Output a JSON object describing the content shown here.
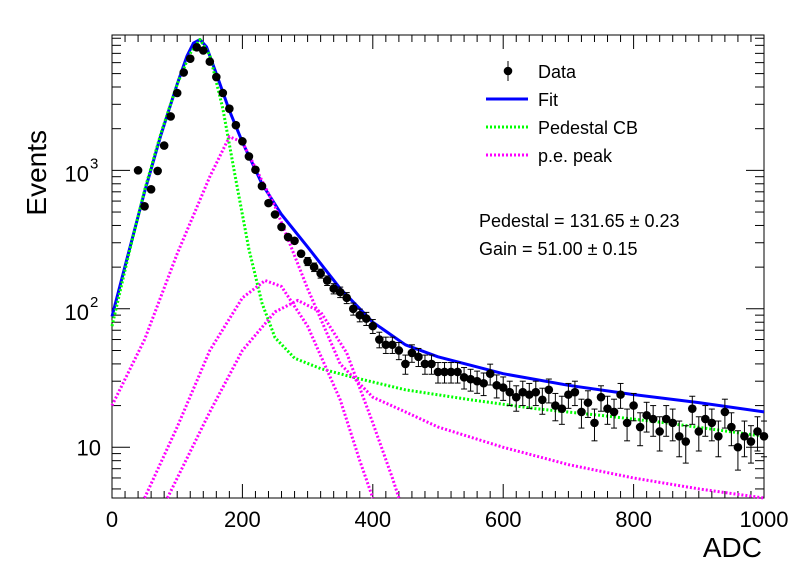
{
  "chart_data": {
    "type": "scatter",
    "xlabel": "ADC",
    "ylabel": "Events",
    "xlim": [
      0,
      1000
    ],
    "ylim": [
      4.3,
      9500
    ],
    "yscale": "log",
    "x_ticks": [
      "0",
      "200",
      "400",
      "600",
      "800",
      "1000"
    ],
    "y_ticks": [
      {
        "value": 10,
        "label": "10"
      },
      {
        "value": 100,
        "label": "10",
        "exponent": "2"
      },
      {
        "value": 1000,
        "label": "10",
        "exponent": "3"
      }
    ],
    "grid": false,
    "legend_position": "top-right",
    "legend": [
      {
        "label": "Data",
        "marker": "point-with-error",
        "color": "#000000"
      },
      {
        "label": "Fit",
        "marker": "solid-line",
        "color": "#0000ff"
      },
      {
        "label": "Pedestal CB",
        "marker": "dotted-line",
        "color": "#00ff00"
      },
      {
        "label": "p.e. peak",
        "marker": "dotted-line",
        "color": "#ff00ff"
      }
    ],
    "annotations": [
      "Pedestal = 131.65 ± 0.23",
      "Gain = 51.00 ± 0.15"
    ],
    "data_points": {
      "x": [
        40,
        50,
        60,
        70,
        80,
        90,
        100,
        110,
        120,
        130,
        140,
        150,
        160,
        170,
        180,
        190,
        200,
        210,
        220,
        230,
        240,
        250,
        260,
        270,
        280,
        290,
        300,
        310,
        320,
        330,
        340,
        350,
        360,
        370,
        380,
        390,
        400,
        410,
        420,
        430,
        440,
        450,
        460,
        470,
        480,
        490,
        500,
        510,
        520,
        530,
        540,
        550,
        560,
        570,
        580,
        590,
        600,
        610,
        620,
        630,
        640,
        650,
        660,
        670,
        680,
        690,
        700,
        710,
        720,
        730,
        740,
        750,
        760,
        770,
        780,
        790,
        800,
        810,
        820,
        830,
        840,
        850,
        860,
        870,
        880,
        890,
        900,
        910,
        920,
        930,
        940,
        950,
        960,
        970,
        980,
        990,
        1000
      ],
      "y": [
        1000,
        550,
        730,
        990,
        1510,
        2450,
        3620,
        5090,
        6410,
        7740,
        7340,
        6100,
        4720,
        3620,
        2790,
        2120,
        1620,
        1260,
        1010,
        770,
        580,
        480,
        390,
        330,
        310,
        250,
        220,
        200,
        180,
        160,
        140,
        132,
        120,
        100,
        90,
        85,
        75,
        60,
        55,
        55,
        50,
        40,
        48,
        45,
        40,
        40,
        35,
        35,
        35,
        35,
        32,
        31,
        30,
        29,
        34,
        28,
        27,
        25,
        23,
        25,
        24,
        25,
        22,
        26,
        20,
        19,
        24,
        25,
        18,
        21,
        15,
        23,
        19,
        18,
        24,
        15,
        20,
        14,
        17,
        16,
        13,
        16,
        15,
        12,
        11,
        19,
        13,
        16,
        15,
        12,
        18,
        14,
        10,
        12,
        11,
        13,
        12
      ]
    },
    "series": [
      {
        "name": "Fit",
        "style": "solid",
        "color": "#0000ff",
        "x": [
          0,
          25,
          50,
          75,
          100,
          115,
          125,
          135,
          145,
          160,
          180,
          200,
          230,
          260,
          300,
          350,
          400,
          450,
          500,
          600,
          700,
          800,
          900,
          1000
        ],
        "y": [
          88,
          250,
          700,
          1800,
          4200,
          6700,
          8300,
          8800,
          7800,
          5000,
          2700,
          1600,
          800,
          480,
          280,
          140,
          80,
          55,
          45,
          34,
          28,
          24,
          21,
          18
        ]
      },
      {
        "name": "Pedestal CB",
        "style": "dotted",
        "color": "#00ff00",
        "x": [
          0,
          25,
          50,
          75,
          100,
          120,
          135,
          150,
          170,
          190,
          210,
          230,
          250,
          280,
          320,
          370,
          450,
          550,
          650,
          750,
          850,
          1000
        ],
        "y": [
          75,
          240,
          720,
          1850,
          4200,
          7000,
          8800,
          6800,
          2800,
          850,
          270,
          110,
          62,
          44,
          37,
          32,
          26,
          22,
          19,
          17,
          15,
          12
        ]
      },
      {
        "name": "p.e. peak",
        "style": "dotted",
        "color": "#ff00ff",
        "x": [
          0,
          50,
          100,
          150,
          180,
          200,
          250,
          300,
          350,
          400,
          450,
          500,
          600,
          700,
          800,
          900,
          1000
        ],
        "y": [
          20,
          60,
          250,
          900,
          1750,
          1600,
          550,
          140,
          40,
          23,
          18,
          14,
          10,
          7.5,
          6,
          5,
          4.3
        ]
      },
      {
        "name": "p.e. peak",
        "style": "dotted",
        "color": "#ff00ff",
        "x": [
          50,
          100,
          150,
          200,
          235,
          260,
          300,
          350,
          380,
          400
        ],
        "y": [
          4.3,
          14,
          50,
          120,
          160,
          145,
          75,
          22,
          8,
          4.3
        ]
      },
      {
        "name": "p.e. peak",
        "style": "dotted",
        "color": "#ff00ff",
        "x": [
          85,
          150,
          200,
          250,
          285,
          320,
          360,
          400,
          430,
          440
        ],
        "y": [
          4.3,
          18,
          50,
          95,
          115,
          95,
          48,
          15,
          6,
          4.3
        ]
      }
    ]
  }
}
